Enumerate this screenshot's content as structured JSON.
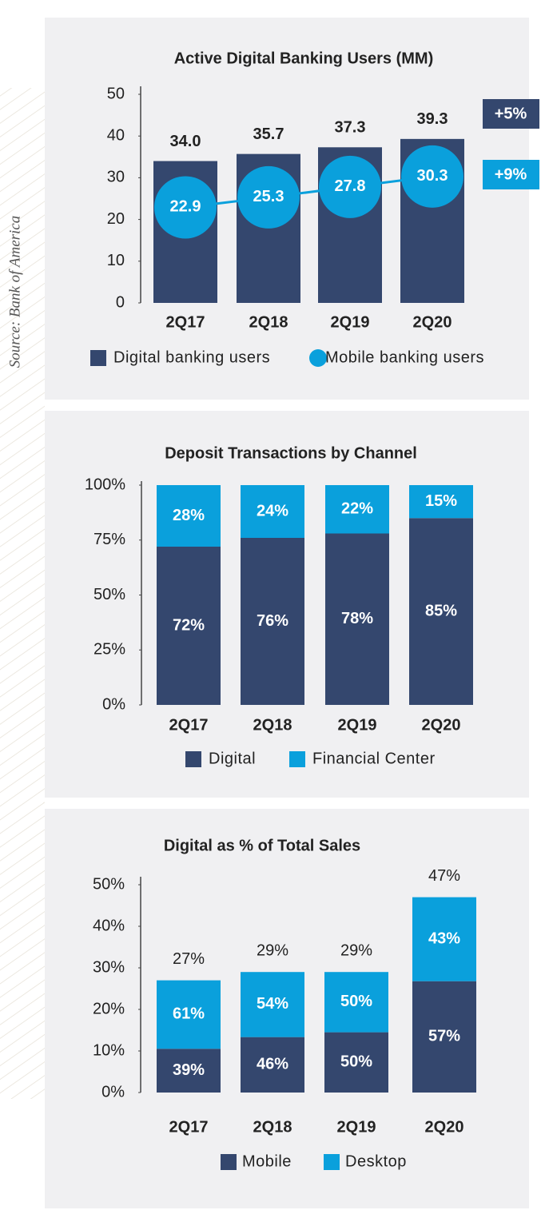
{
  "source": "Source: Bank of America",
  "chart_data": [
    {
      "type": "combo",
      "title": "Active Digital Banking Users (MM)",
      "categories": [
        "2Q17",
        "2Q18",
        "2Q19",
        "2Q20"
      ],
      "series": [
        {
          "name": "Digital banking users",
          "color": "#34476e",
          "values": [
            34.0,
            35.7,
            37.3,
            39.3
          ],
          "value_labels": [
            "34.0",
            "35.7",
            "37.3",
            "39.3"
          ]
        },
        {
          "name": "Mobile banking users",
          "color": "#0aa0dc",
          "values": [
            22.9,
            25.3,
            27.8,
            30.3
          ]
        }
      ],
      "annotations": [
        "+5%",
        "+9%"
      ],
      "ylim": [
        0,
        50
      ],
      "yticks": [
        0,
        10,
        20,
        30,
        40,
        50
      ]
    },
    {
      "type": "stacked",
      "title": "Deposit Transactions by Channel",
      "categories": [
        "2Q17",
        "2Q18",
        "2Q19",
        "2Q20"
      ],
      "series": [
        {
          "name": "Digital",
          "color": "#34476e",
          "values": [
            72,
            76,
            78,
            85
          ],
          "value_labels": [
            "72%",
            "76%",
            "78%",
            "85%"
          ]
        },
        {
          "name": "Financial Center",
          "color": "#0aa0dc",
          "values": [
            28,
            24,
            22,
            15
          ],
          "value_labels": [
            "28%",
            "24%",
            "22%",
            "15%"
          ]
        }
      ],
      "ylim": [
        0,
        100
      ],
      "yticks": [
        {
          "value": 0,
          "label": "0%"
        },
        {
          "value": 25,
          "label": "25%"
        },
        {
          "value": 50,
          "label": "50%"
        },
        {
          "value": 75,
          "label": "75%"
        },
        {
          "value": 100,
          "label": "100%"
        }
      ]
    },
    {
      "type": "share",
      "title": "Digital as % of Total Sales",
      "categories": [
        "2Q17",
        "2Q18",
        "2Q19",
        "2Q20"
      ],
      "totals": [
        27,
        29,
        29,
        47
      ],
      "totals_labels": [
        "27%",
        "29%",
        "29%",
        "47%"
      ],
      "series": [
        {
          "name": "Mobile",
          "color": "#34476e",
          "values": [
            39,
            46,
            50,
            57
          ],
          "value_labels": [
            "39%",
            "46%",
            "50%",
            "57%"
          ]
        },
        {
          "name": "Desktop",
          "color": "#0aa0dc",
          "values": [
            61,
            54,
            50,
            43
          ],
          "value_labels": [
            "61%",
            "54%",
            "50%",
            "43%"
          ]
        }
      ],
      "ylim": [
        0,
        50
      ],
      "yticks": [
        {
          "value": 0,
          "label": "0%"
        },
        {
          "value": 10,
          "label": "10%"
        },
        {
          "value": 20,
          "label": "20%"
        },
        {
          "value": 30,
          "label": "30%"
        },
        {
          "value": 40,
          "label": "40%"
        },
        {
          "value": 50,
          "label": "50%"
        }
      ]
    }
  ]
}
